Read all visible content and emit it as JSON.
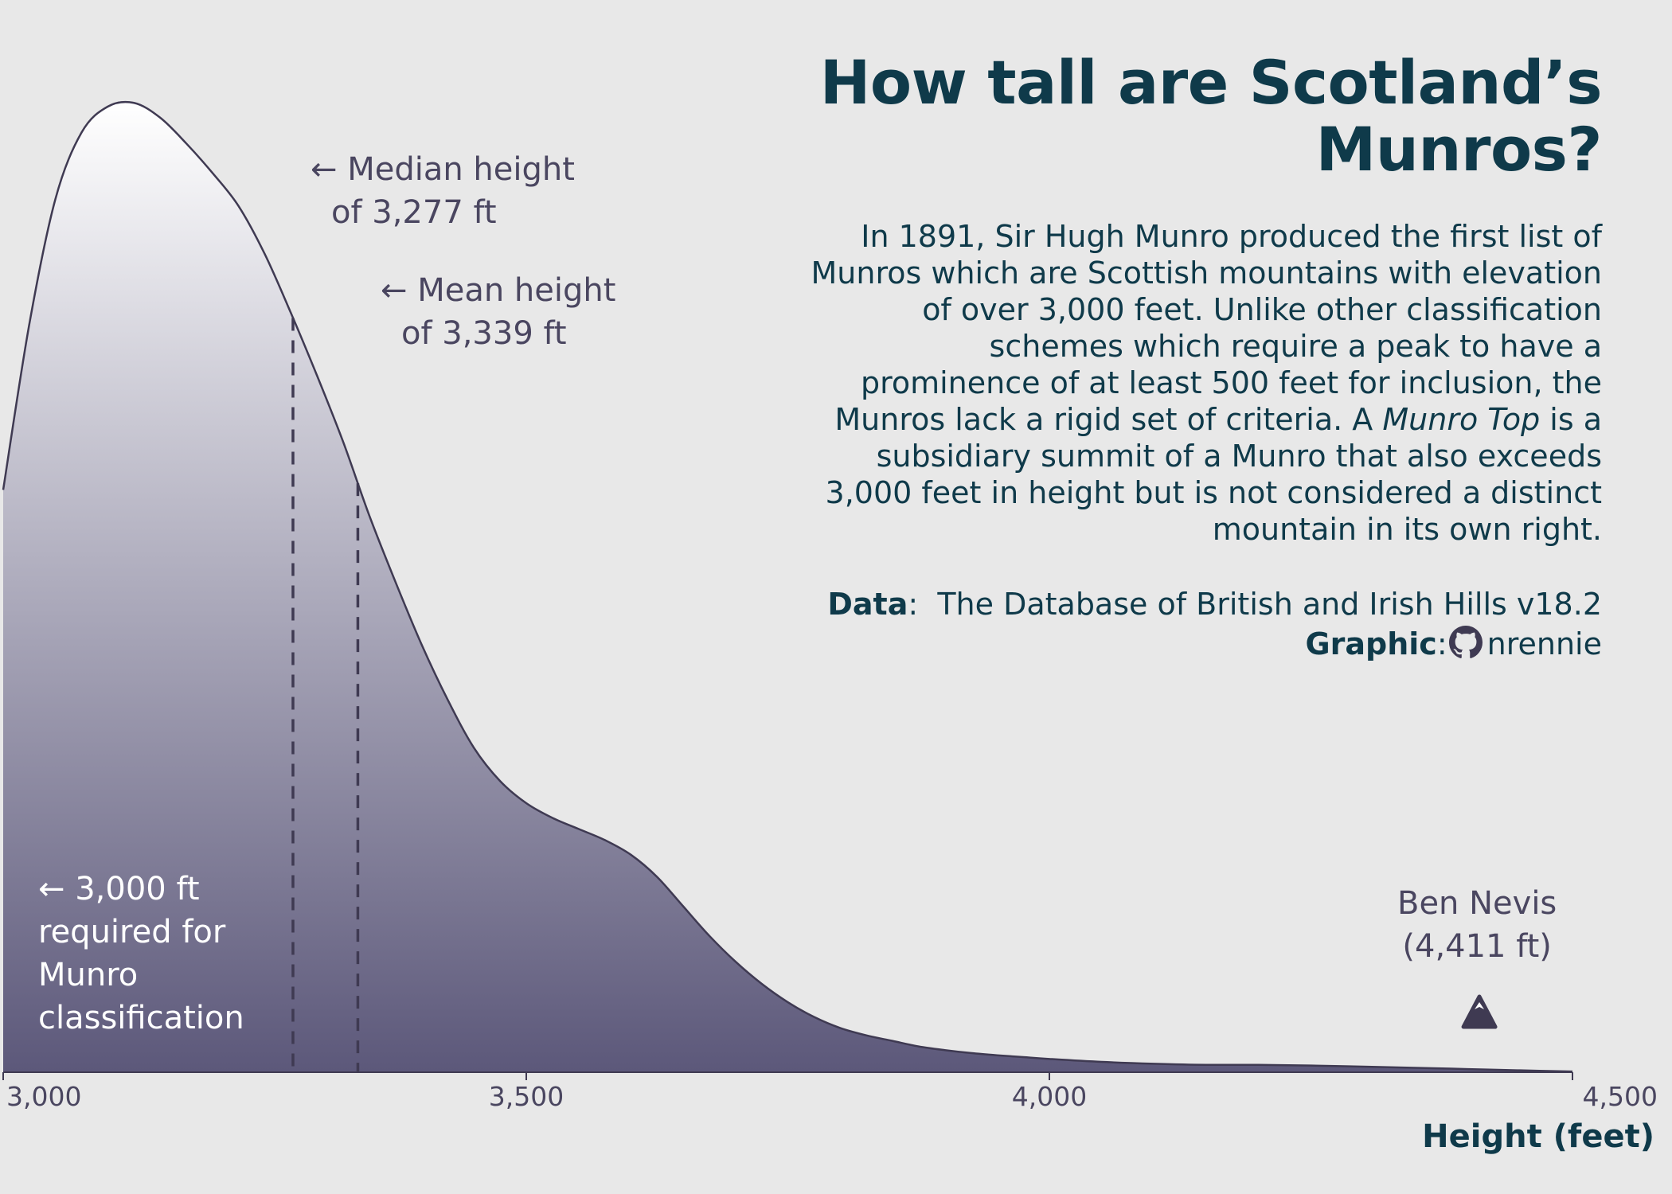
{
  "title": "How tall are Scotland’s Munros?",
  "description": {
    "part1": "In 1891, Sir Hugh Munro produced the first list of Munros which are Scottish mountains with elevation of over 3,000 feet. Unlike other classification schemes which require a peak to have a prominence of at least 500 feet for inclusion, the Munros lack a rigid set of criteria. A ",
    "italic": "Munro Top",
    "part2": " is a subsidiary summit of a Munro that also exceeds 3,000 feet in height but is not considered a distinct mountain in its own right."
  },
  "credits": {
    "data_label": "Data",
    "data_value": "The Database of British and Irish Hills v18.2",
    "graphic_label": "Graphic",
    "graphic_value": "nrennie",
    "graphic_icon": "github-icon"
  },
  "annotations": {
    "median": "← Median height\nof 3,277 ft",
    "mean": "← Mean height\nof 3,339 ft",
    "threshold": "← 3,000 ft\nrequired for\nMunro\nclassification",
    "ben_nevis": "Ben Nevis\n(4,411 ft)",
    "ben_nevis_icon": "mountain-icon"
  },
  "colors": {
    "background": "#e8e8e8",
    "fill_top": "#ffffff",
    "fill_bottom": "#5c587a",
    "line": "#3f3a52",
    "title": "#0f3a4a",
    "annotation": "#4a4660"
  },
  "chart_data": {
    "type": "area",
    "xlabel": "Height (feet)",
    "ylabel": "",
    "xlim": [
      3000,
      4500
    ],
    "ylim": [
      0,
      0.00265
    ],
    "grid": false,
    "xticks": [
      3000,
      3500,
      4000,
      4500
    ],
    "xtick_labels": [
      "3,000",
      "3,500",
      "4,000",
      "4,500"
    ],
    "x": [
      3000,
      3025,
      3050,
      3075,
      3100,
      3125,
      3150,
      3175,
      3200,
      3225,
      3250,
      3275,
      3300,
      3325,
      3350,
      3375,
      3400,
      3425,
      3450,
      3475,
      3500,
      3525,
      3550,
      3575,
      3600,
      3625,
      3650,
      3675,
      3700,
      3725,
      3750,
      3775,
      3800,
      3825,
      3850,
      3875,
      3900,
      3925,
      3950,
      3975,
      4000,
      4050,
      4100,
      4150,
      4200,
      4250,
      4300,
      4350,
      4400,
      4450,
      4500
    ],
    "y": [
      0.00158,
      0.00203,
      0.00237,
      0.00255,
      0.00262,
      0.00263,
      0.00259,
      0.00252,
      0.00244,
      0.00235,
      0.00222,
      0.00206,
      0.00189,
      0.00171,
      0.00151,
      0.00133,
      0.00116,
      0.00101,
      0.00088,
      0.00079,
      0.00073,
      0.00069,
      0.00066,
      0.00063,
      0.00059,
      0.00053,
      0.00045,
      0.00037,
      0.0003,
      0.00024,
      0.00019,
      0.00015,
      0.00012,
      0.0001,
      8.5e-05,
      7e-05,
      6e-05,
      5.2e-05,
      4.6e-05,
      4.1e-05,
      3.6e-05,
      2.8e-05,
      2.3e-05,
      2e-05,
      2e-05,
      1.8e-05,
      1.5e-05,
      1.2e-05,
      8.5e-06,
      5e-06,
      1.8e-06
    ],
    "median": 3277,
    "mean": 3339,
    "ben_nevis": 4411
  }
}
